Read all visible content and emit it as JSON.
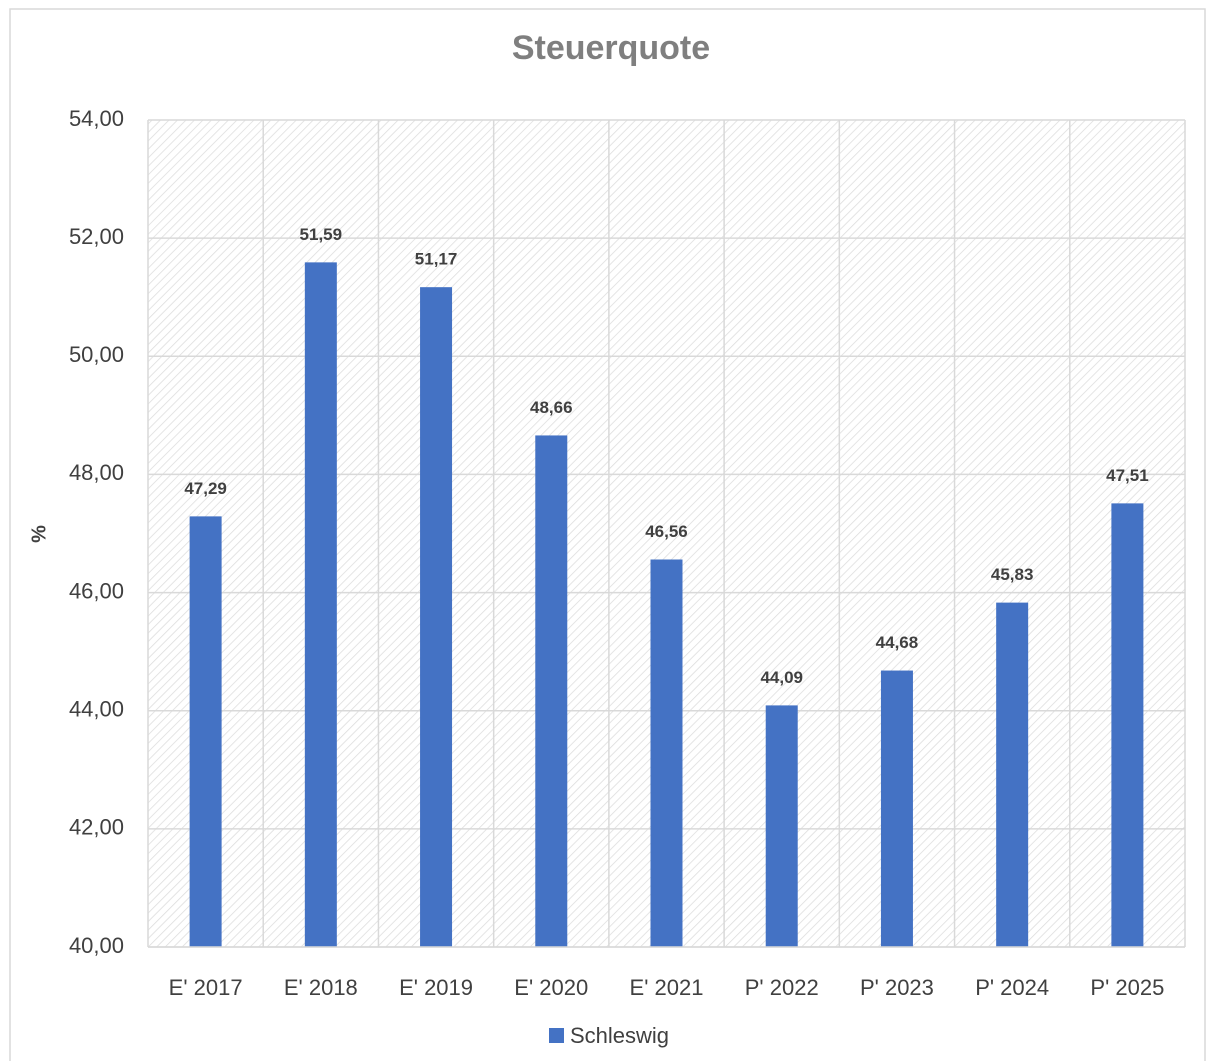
{
  "chart_data": {
    "type": "bar",
    "title": "Steuerquote",
    "y_label": "%",
    "categories": [
      "E' 2017",
      "E' 2018",
      "E' 2019",
      "E' 2020",
      "E' 2021",
      "P' 2022",
      "P' 2023",
      "P' 2024",
      "P' 2025"
    ],
    "series": [
      {
        "name": "Schleswig",
        "color": "#4472c4",
        "values": [
          47.29,
          51.59,
          51.17,
          48.66,
          46.56,
          44.09,
          44.68,
          45.83,
          47.51
        ],
        "value_labels": [
          "47,29",
          "51,59",
          "51,17",
          "48,66",
          "46,56",
          "44,09",
          "44,68",
          "45,83",
          "47,51"
        ]
      }
    ],
    "ylim": [
      40,
      54
    ],
    "yticks": [
      {
        "value": 40,
        "label": "40,00"
      },
      {
        "value": 42,
        "label": "42,00"
      },
      {
        "value": 44,
        "label": "44,00"
      },
      {
        "value": 46,
        "label": "46,00"
      },
      {
        "value": 48,
        "label": "48,00"
      },
      {
        "value": 50,
        "label": "50,00"
      },
      {
        "value": 52,
        "label": "52,00"
      },
      {
        "value": 54,
        "label": "54,00"
      }
    ],
    "grid": true,
    "legend": "bottom"
  }
}
